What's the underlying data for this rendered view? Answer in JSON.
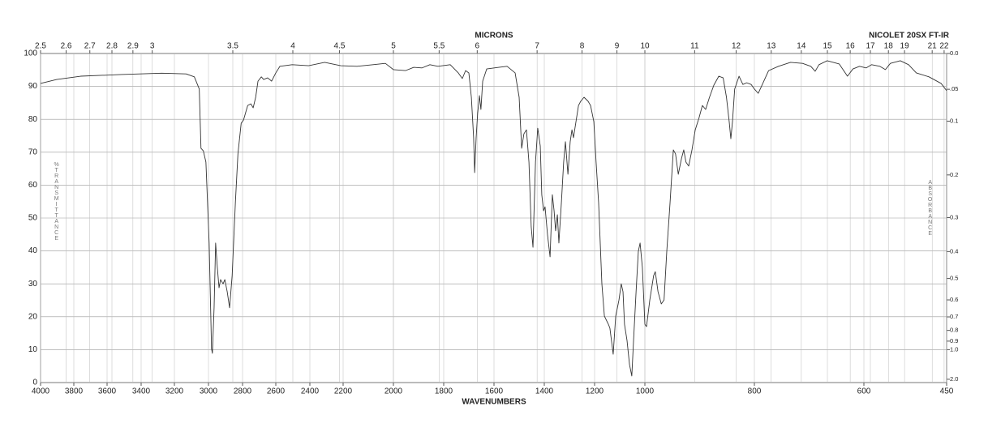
{
  "chart_data": {
    "type": "line",
    "title": "NICOLET 20SX FT-IR",
    "x_axis_label": "WAVENUMBERS",
    "top_axis_label": "MICRONS",
    "y_axis_label": "%TRANSMITTANCE",
    "y2_axis_label": "ABSORBANCE",
    "color": "#333333",
    "grid": true,
    "xlim": [
      4000,
      450
    ],
    "xticks": [
      4000,
      3800,
      3600,
      3400,
      3200,
      3000,
      2800,
      2600,
      2400,
      2200,
      2000,
      1800,
      1600,
      1400,
      1200,
      1000,
      800,
      600,
      450
    ],
    "x2ticks": [
      2.5,
      2.6,
      2.7,
      2.8,
      2.9,
      3,
      3.5,
      4,
      4.5,
      5,
      5.5,
      6,
      7,
      8,
      9,
      10,
      11,
      12,
      13,
      14,
      15,
      16,
      17,
      18,
      19,
      21,
      22
    ],
    "ylim": [
      0,
      100
    ],
    "yticks": [
      0,
      10,
      20,
      30,
      40,
      50,
      60,
      70,
      80,
      90,
      100
    ],
    "y2ticks": [
      {
        "value": 0,
        "label": "0.0"
      },
      {
        "value": 0.05,
        "label": ".05"
      },
      0.1,
      0.2,
      0.3,
      0.4,
      0.5,
      0.6,
      0.7,
      0.8,
      0.9,
      {
        "value": 1,
        "label": "1.0"
      },
      {
        "value": 2,
        "label": "2.0"
      }
    ],
    "x": [
      4000,
      3903,
      3759,
      3517,
      3276,
      3131,
      3083,
      3054,
      3044,
      3030,
      3015,
      2996,
      2982,
      2977,
      2967,
      2958,
      2948,
      2938,
      2929,
      2914,
      2904,
      2890,
      2876,
      2861,
      2842,
      2827,
      2808,
      2794,
      2769,
      2750,
      2736,
      2721,
      2707,
      2687,
      2673,
      2649,
      2625,
      2600,
      2576,
      2504,
      2407,
      2311,
      2214,
      2145,
      2081,
      2032,
      2000,
      1952,
      1919,
      1887,
      1855,
      1823,
      1774,
      1742,
      1726,
      1713,
      1700,
      1690,
      1681,
      1677,
      1671,
      1665,
      1658,
      1652,
      1645,
      1629,
      1581,
      1548,
      1516,
      1500,
      1490,
      1481,
      1471,
      1461,
      1452,
      1445,
      1435,
      1426,
      1416,
      1410,
      1403,
      1397,
      1387,
      1377,
      1368,
      1361,
      1355,
      1348,
      1342,
      1332,
      1323,
      1316,
      1306,
      1297,
      1290,
      1284,
      1274,
      1264,
      1255,
      1242,
      1226,
      1216,
      1203,
      1194,
      1184,
      1171,
      1161,
      1145,
      1139,
      1126,
      1116,
      1103,
      1094,
      1087,
      1081,
      1071,
      1061,
      1052,
      1045,
      1035,
      1026,
      1019,
      1010,
      1000,
      997,
      991,
      984,
      981,
      976,
      970,
      965,
      960,
      954,
      948,
      944,
      939,
      933,
      929,
      925,
      920,
      914,
      908,
      901,
      895,
      889,
      882,
      874,
      865,
      857,
      851,
      846,
      843,
      840,
      836,
      828,
      821,
      814,
      806,
      800,
      793,
      786,
      774,
      756,
      734,
      712,
      697,
      689,
      682,
      667,
      645,
      630,
      620,
      608,
      596,
      586,
      571,
      561,
      552,
      534,
      519,
      505,
      482,
      460,
      450
    ],
    "values": [
      90.9,
      92.1,
      93.1,
      93.6,
      94.0,
      93.8,
      92.9,
      89.2,
      71.2,
      70.4,
      67.0,
      42.4,
      10.3,
      8.9,
      22.7,
      42.4,
      35.0,
      28.8,
      31.3,
      30.0,
      31.3,
      27.6,
      22.7,
      32.5,
      54.7,
      69.5,
      78.8,
      79.8,
      84.2,
      84.7,
      83.5,
      86.7,
      91.6,
      92.9,
      92.1,
      92.6,
      91.6,
      94.1,
      96.1,
      96.6,
      96.3,
      97.3,
      96.3,
      96.1,
      96.6,
      97.0,
      95.1,
      94.8,
      95.8,
      95.6,
      96.6,
      96.1,
      96.6,
      94.1,
      92.4,
      94.8,
      94.1,
      86.7,
      74.4,
      63.8,
      74.4,
      81.8,
      87.2,
      83.0,
      91.6,
      95.3,
      95.8,
      96.1,
      94.1,
      86.7,
      71.2,
      75.6,
      76.8,
      67.0,
      47.3,
      41.1,
      67.0,
      77.3,
      71.9,
      57.1,
      52.2,
      53.4,
      44.8,
      38.2,
      57.1,
      52.2,
      46.1,
      51.0,
      42.4,
      54.7,
      67.0,
      73.2,
      63.3,
      73.2,
      76.8,
      74.4,
      79.3,
      84.2,
      85.5,
      86.7,
      85.5,
      84.2,
      79.3,
      67.0,
      54.7,
      30.0,
      20.2,
      17.7,
      16.5,
      8.6,
      20.2,
      25.1,
      30.0,
      27.6,
      17.7,
      12.8,
      5.4,
      2.0,
      12.8,
      27.6,
      39.9,
      42.4,
      35.0,
      17.7,
      17.0,
      25.1,
      32.5,
      33.7,
      27.6,
      23.9,
      25.1,
      39.9,
      54.7,
      70.7,
      69.5,
      63.3,
      68.2,
      70.7,
      67.0,
      65.8,
      70.7,
      76.8,
      80.5,
      84.2,
      83.0,
      86.7,
      90.4,
      93.1,
      92.6,
      86.7,
      79.3,
      74.1,
      79.3,
      89.2,
      93.1,
      90.6,
      91.1,
      90.6,
      89.2,
      87.9,
      90.4,
      94.8,
      96.1,
      97.3,
      97.0,
      96.1,
      94.6,
      96.6,
      97.8,
      96.8,
      93.1,
      95.3,
      96.1,
      95.6,
      96.6,
      96.1,
      95.1,
      97.0,
      97.8,
      96.6,
      94.1,
      92.9,
      90.9,
      88.7
    ]
  }
}
